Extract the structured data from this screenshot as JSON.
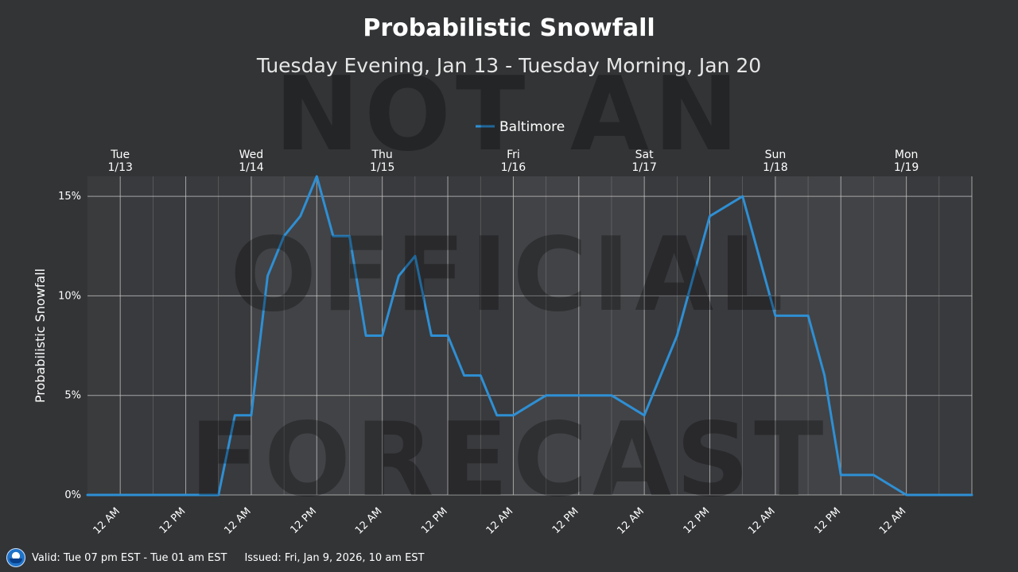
{
  "header": {
    "title": "Probabilistic Snowfall",
    "subtitle": "Tuesday Evening, Jan 13 - Tuesday Morning, Jan 20"
  },
  "watermark": [
    "NOT AN",
    "OFFICIAL",
    "FORECAST"
  ],
  "footer": {
    "valid": "Valid: Tue 07 pm EST - Tue 01 am EST",
    "issued": "Issued: Fri, Jan 9, 2026, 10 am EST"
  },
  "colors": {
    "background": "#333436",
    "plot_background_dark": "#3a3b3d",
    "plot_background_light": "#444547",
    "series": "#2e8fd4",
    "grid": "#c8c8c8"
  },
  "chart_data": {
    "type": "line",
    "ylabel": "Probabilistic Snowfall",
    "y_tick_labels": [
      "0%",
      "5%",
      "10%",
      "15%"
    ],
    "y_ticks": [
      0,
      5,
      10,
      15
    ],
    "ylim": [
      0,
      16
    ],
    "xlim": [
      -6,
      156
    ],
    "legend_position": "top-center",
    "day_labels": [
      {
        "day": "Tue",
        "date": "1/13",
        "x": 0
      },
      {
        "day": "Wed",
        "date": "1/14",
        "x": 24
      },
      {
        "day": "Thu",
        "date": "1/15",
        "x": 48
      },
      {
        "day": "Fri",
        "date": "1/16",
        "x": 72
      },
      {
        "day": "Sat",
        "date": "1/17",
        "x": 96
      },
      {
        "day": "Sun",
        "date": "1/18",
        "x": 120
      },
      {
        "day": "Mon",
        "date": "1/19",
        "x": 144
      }
    ],
    "x_tick_labels": [
      {
        "label": "12 AM",
        "x": 0
      },
      {
        "label": "12 PM",
        "x": 12
      },
      {
        "label": "12 AM",
        "x": 24
      },
      {
        "label": "12 PM",
        "x": 36
      },
      {
        "label": "12 AM",
        "x": 48
      },
      {
        "label": "12 PM",
        "x": 60
      },
      {
        "label": "12 AM",
        "x": 72
      },
      {
        "label": "12 PM",
        "x": 84
      },
      {
        "label": "12 AM",
        "x": 96
      },
      {
        "label": "12 PM",
        "x": 108
      },
      {
        "label": "12 AM",
        "x": 120
      },
      {
        "label": "12 PM",
        "x": 132
      },
      {
        "label": "12 AM",
        "x": 144
      }
    ],
    "series": [
      {
        "name": "Baltimore",
        "x": [
          -6,
          0,
          6,
          12,
          18,
          21,
          24,
          27,
          30,
          33,
          36,
          39,
          42,
          45,
          48,
          51,
          54,
          57,
          60,
          63,
          66,
          69,
          72,
          75,
          78,
          84,
          90,
          96,
          102,
          108,
          114,
          117,
          120,
          126,
          129,
          132,
          138,
          144,
          150,
          156
        ],
        "y": [
          0,
          0,
          0,
          0,
          0,
          4,
          4,
          11,
          13,
          14,
          16,
          13,
          13,
          8,
          8,
          11,
          12,
          8,
          8,
          6,
          6,
          4,
          4,
          4.5,
          5,
          5,
          5,
          4,
          8,
          14,
          15,
          12,
          9,
          9,
          6,
          1,
          1,
          0,
          0,
          0
        ]
      }
    ]
  }
}
